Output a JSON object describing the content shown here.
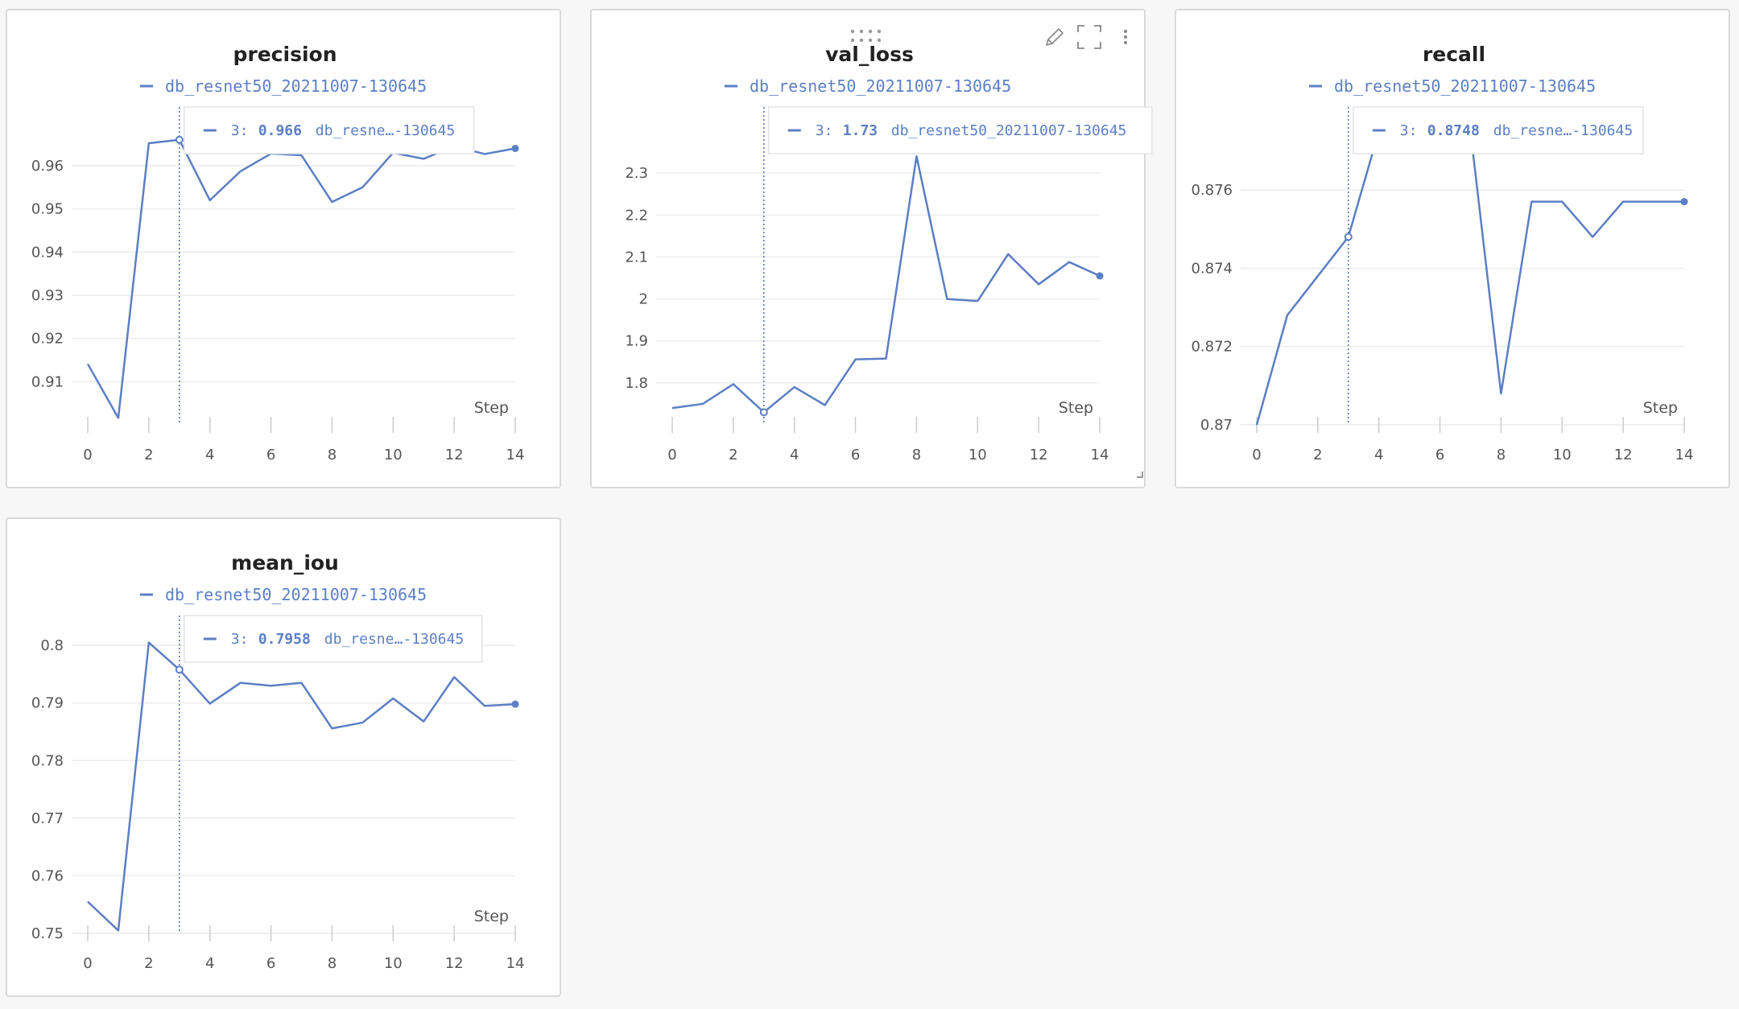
{
  "colors": {
    "series": "#5b7fc4",
    "grid": "#ececec",
    "axis": "#cccccc",
    "text": "#555555",
    "panel_border": "#d9d9d9"
  },
  "icons": {
    "drag": "drag-handle-icon",
    "edit": "pencil-icon",
    "fullscreen": "fullscreen-icon",
    "menu": "more-vertical-icon",
    "resize": "resize-corner-icon"
  },
  "chart_data": [
    {
      "type": "line",
      "title": "precision",
      "xlabel": "Step",
      "ylabel": "",
      "legend": [
        "db_resnet50_20211007-130645"
      ],
      "x": [
        0,
        1,
        2,
        3,
        4,
        5,
        6,
        7,
        8,
        9,
        10,
        11,
        12,
        13,
        14
      ],
      "series": [
        {
          "name": "db_resnet50_20211007-130645",
          "values": [
            0.9141,
            0.9016,
            0.9652,
            0.966,
            0.952,
            0.9587,
            0.9628,
            0.9624,
            0.9516,
            0.955,
            0.963,
            0.9616,
            0.9645,
            0.9627,
            0.964
          ]
        }
      ],
      "xlim": [
        0,
        14
      ],
      "ylim": [
        0.9,
        0.968
      ],
      "xticks": [
        0,
        2,
        4,
        6,
        8,
        10,
        12,
        14
      ],
      "yticks": [
        0.91,
        0.92,
        0.93,
        0.94,
        0.95,
        0.96
      ],
      "ytick_labels": [
        "0.91",
        "0.92",
        "0.93",
        "0.94",
        "0.95",
        "0.96"
      ],
      "grid": true,
      "tooltip": {
        "step_label": "3:",
        "value": "0.966",
        "run": "db_resne…-130645"
      }
    },
    {
      "type": "line",
      "title": "val_loss",
      "xlabel": "Step",
      "ylabel": "",
      "legend": [
        "db_resnet50_20211007-130645"
      ],
      "x": [
        0,
        1,
        2,
        3,
        4,
        5,
        6,
        7,
        8,
        9,
        10,
        11,
        12,
        13,
        14
      ],
      "series": [
        {
          "name": "db_resnet50_20211007-130645",
          "values": [
            1.74,
            1.75,
            1.797,
            1.73,
            1.79,
            1.747,
            1.856,
            1.858,
            2.34,
            2.0,
            1.995,
            2.107,
            2.035,
            2.088,
            2.055
          ]
        }
      ],
      "xlim": [
        0,
        14
      ],
      "ylim": [
        1.7,
        2.4
      ],
      "xticks": [
        0,
        2,
        4,
        6,
        8,
        10,
        12,
        14
      ],
      "yticks": [
        1.8,
        1.9,
        2.0,
        2.1,
        2.2,
        2.3
      ],
      "ytick_labels": [
        "1.8",
        "1.9",
        "2",
        "2.1",
        "2.2",
        "2.3"
      ],
      "grid": true,
      "tooltip": {
        "step_label": "3:",
        "value": "1.73",
        "run": "db_resnet50_20211007-130645"
      }
    },
    {
      "type": "line",
      "title": "recall",
      "xlabel": "Step",
      "ylabel": "",
      "legend": [
        "db_resnet50_20211007-130645"
      ],
      "x": [
        0,
        1,
        2,
        3,
        4,
        5,
        6,
        7,
        8,
        9,
        10,
        11,
        12,
        13,
        14
      ],
      "series": [
        {
          "name": "db_resnet50_20211007-130645",
          "values": [
            0.87,
            0.8728,
            0.8738,
            0.8748,
            0.8775,
            0.8775,
            0.8775,
            0.8775,
            0.8708,
            0.8757,
            0.8757,
            0.8748,
            0.8757,
            0.8757,
            0.8757
          ]
        }
      ],
      "xlim": [
        0,
        14
      ],
      "ylim": [
        0.87,
        0.8775
      ],
      "xticks": [
        0,
        2,
        4,
        6,
        8,
        10,
        12,
        14
      ],
      "yticks": [
        0.87,
        0.872,
        0.874,
        0.876
      ],
      "ytick_labels": [
        "0.87",
        "0.872",
        "0.874",
        "0.876"
      ],
      "grid": true,
      "tooltip": {
        "step_label": "3:",
        "value": "0.8748",
        "run": "db_resne…-130645"
      }
    },
    {
      "type": "line",
      "title": "mean_iou",
      "xlabel": "Step",
      "ylabel": "",
      "legend": [
        "db_resnet50_20211007-130645"
      ],
      "x": [
        0,
        1,
        2,
        3,
        4,
        5,
        6,
        7,
        8,
        9,
        10,
        11,
        12,
        13,
        14
      ],
      "series": [
        {
          "name": "db_resnet50_20211007-130645",
          "values": [
            0.7555,
            0.7505,
            0.8005,
            0.7958,
            0.7899,
            0.7935,
            0.793,
            0.7935,
            0.7856,
            0.7866,
            0.7908,
            0.7868,
            0.7945,
            0.7895,
            0.7898
          ]
        }
      ],
      "xlim": [
        0,
        14
      ],
      "ylim": [
        0.75,
        0.801
      ],
      "xticks": [
        0,
        2,
        4,
        6,
        8,
        10,
        12,
        14
      ],
      "yticks": [
        0.75,
        0.76,
        0.77,
        0.78,
        0.79,
        0.8
      ],
      "ytick_labels": [
        "0.75",
        "0.76",
        "0.77",
        "0.78",
        "0.79",
        "0.8"
      ],
      "grid": true,
      "tooltip": {
        "step_label": "3:",
        "value": "0.7958",
        "run": "db_resne…-130645"
      }
    }
  ]
}
